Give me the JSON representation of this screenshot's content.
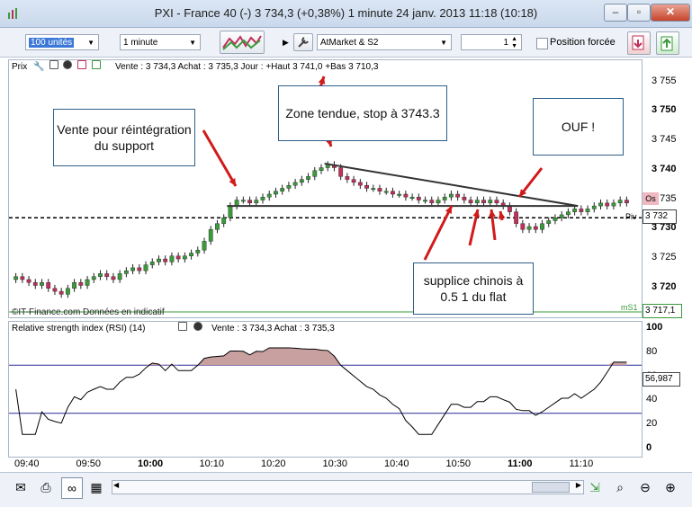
{
  "window": {
    "title": "PXI - France 40 (-)    3 734,3 (+0,38%)      1 minute  24 janv. 2013 11:18 (10:18)",
    "minimize": "–",
    "maximize": "▫",
    "close": "✕"
  },
  "toolbar": {
    "quantity": "100 unités",
    "timeframe": "1 minute",
    "order_type": "AtMarket & S2",
    "stepper_value": "1",
    "forced_label": "Position forcée"
  },
  "price_panel": {
    "label": "Prix",
    "quote": "Vente : 3 734,3  Achat : 3 735,3  Jour : +Haut 3 741,0  +Bas 3 710,3",
    "watermark": "©IT-Finance.com   Données en indicatif",
    "y_ticks": [
      "3 755",
      "3 750",
      "3 745",
      "3 740",
      "3 735",
      "3 730",
      "3 725",
      "3 720"
    ],
    "badge_current": "3 732",
    "badge_os": "Os",
    "badge_bottom": "3 717,1",
    "piv_label": "Piv",
    "ms1_label": "mS1"
  },
  "annotations": {
    "vente": "Vente pour réintégration du support",
    "zone": "Zone tendue, stop à 3743.3",
    "ouf": "OUF !",
    "supplice": "supplice chinois à 0.5 1 du flat"
  },
  "rsi_panel": {
    "label": "Relative strength index (RSI) (14)",
    "quote": "Vente : 3 734,3  Achat : 3 735,3",
    "y_ticks": [
      "100",
      "80",
      "60",
      "40",
      "20",
      "0"
    ],
    "current": "56,987"
  },
  "x_axis": [
    "09:40",
    "09:50",
    "10:00",
    "10:10",
    "10:20",
    "10:30",
    "10:40",
    "10:50",
    "11:00",
    "11:10"
  ],
  "chart_data": {
    "type": "candlestick",
    "y_range": [
      3716,
      3756
    ],
    "close_series": [
      3722,
      3721.5,
      3721,
      3720.5,
      3721,
      3720,
      3719.5,
      3719,
      3720,
      3721,
      3720.5,
      3721.5,
      3722,
      3722.5,
      3722,
      3721.5,
      3722.5,
      3723,
      3723.5,
      3723,
      3724,
      3724.5,
      3725,
      3724.5,
      3725.5,
      3725,
      3725.5,
      3726,
      3726.5,
      3728,
      3730,
      3731,
      3732,
      3734,
      3735,
      3735,
      3734.5,
      3735,
      3735.5,
      3736,
      3736.5,
      3737,
      3737.5,
      3738,
      3738.5,
      3739,
      3740,
      3740.5,
      3741,
      3740.5,
      3739,
      3738.5,
      3738,
      3737.5,
      3737,
      3737,
      3736.5,
      3736.5,
      3736,
      3736,
      3735.5,
      3735.5,
      3735,
      3735,
      3734.5,
      3735,
      3735.5,
      3736,
      3735.5,
      3735,
      3734.5,
      3735,
      3734.5,
      3735,
      3734.5,
      3734,
      3733,
      3731,
      3730,
      3730.5,
      3730,
      3731,
      3731.5,
      3732,
      3732.5,
      3733,
      3733.5,
      3733,
      3733.5,
      3734,
      3734.5,
      3734,
      3734.5,
      3735,
      3734.5
    ],
    "support_line": 3734,
    "pivot_line": 3732,
    "rsi_overbought": 70,
    "rsi_oversold": 30
  },
  "colors": {
    "up": "#3a9b3a",
    "down": "#c0305a",
    "arrow": "#d11a1a",
    "rsi_fill": "#c9a0a0"
  }
}
